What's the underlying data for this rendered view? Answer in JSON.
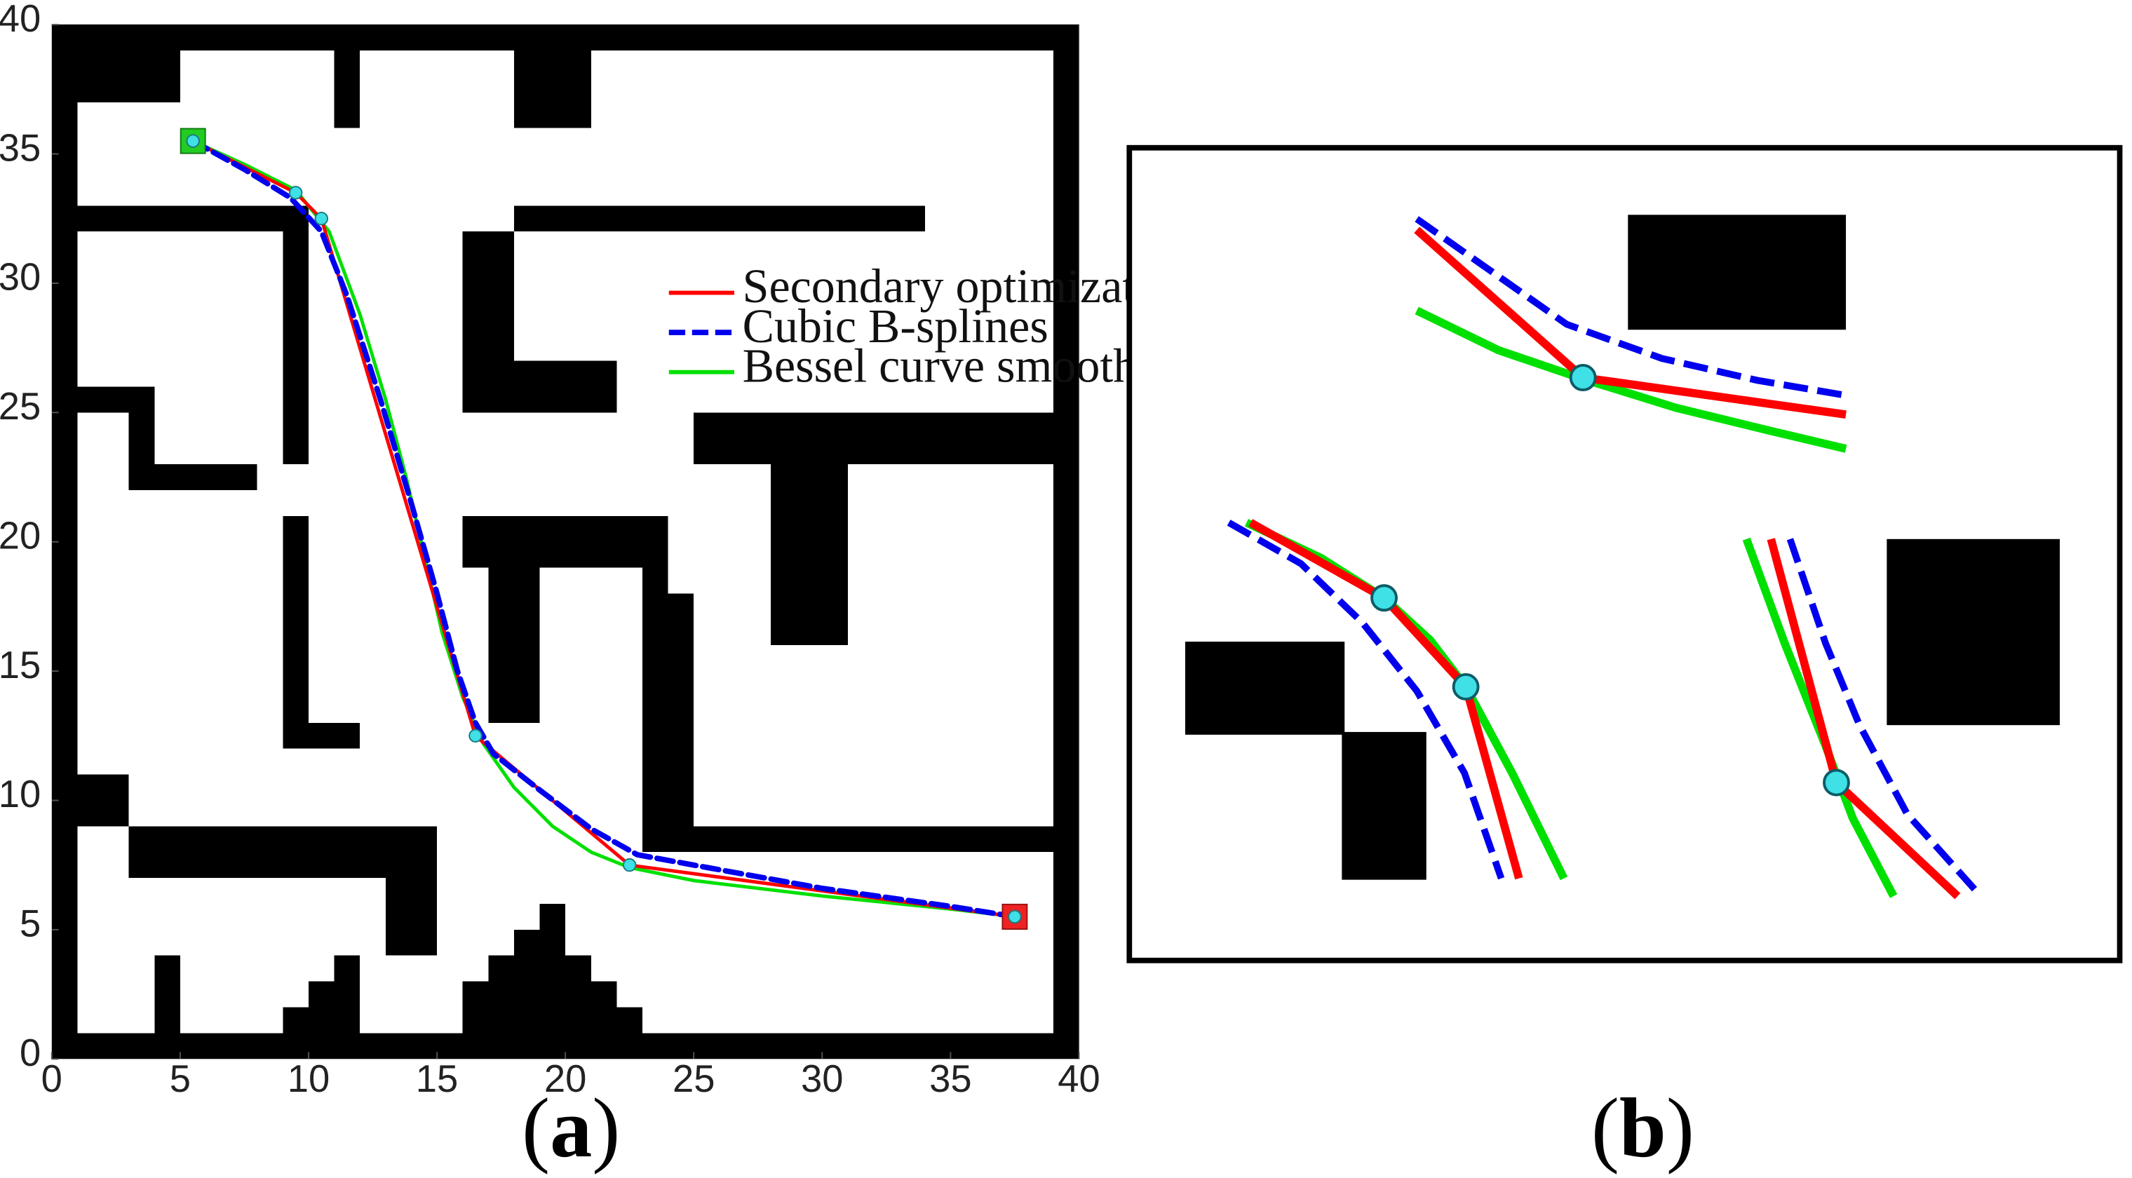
{
  "chart_data": [
    {
      "type": "line",
      "panel": "a",
      "xlim": [
        0,
        40
      ],
      "ylim": [
        0,
        40
      ],
      "xticks": [
        0,
        5,
        10,
        15,
        20,
        25,
        30,
        35,
        40
      ],
      "yticks": [
        0,
        5,
        10,
        15,
        20,
        25,
        30,
        35,
        40
      ],
      "grid": false,
      "legend_position": "upper-right",
      "start": [
        5.5,
        35.5
      ],
      "goal": [
        37.5,
        5.5
      ],
      "waypoints": [
        [
          5.5,
          35.5
        ],
        [
          9.5,
          33.5
        ],
        [
          10.5,
          32.5
        ],
        [
          16.5,
          12.5
        ],
        [
          22.5,
          7.5
        ],
        [
          37.5,
          5.5
        ]
      ],
      "obstacles": [
        [
          0,
          39,
          1,
          1
        ],
        [
          39,
          39,
          1,
          1
        ],
        [
          0,
          0,
          1,
          1
        ],
        [
          39,
          0,
          1,
          1
        ],
        [
          1,
          39,
          38,
          1
        ],
        [
          1,
          0,
          38,
          1
        ],
        [
          0,
          1,
          1,
          38
        ],
        [
          39,
          1,
          1,
          38
        ],
        [
          1,
          37,
          4,
          2
        ],
        [
          11,
          36,
          1,
          3
        ],
        [
          18,
          36,
          3,
          3
        ],
        [
          1,
          32,
          9,
          1
        ],
        [
          9,
          23,
          1,
          9
        ],
        [
          9,
          12,
          1,
          9
        ],
        [
          9,
          12,
          3,
          1
        ],
        [
          1,
          25,
          3,
          1
        ],
        [
          3,
          22,
          1,
          3
        ],
        [
          3,
          22,
          5,
          1
        ],
        [
          18,
          32,
          16,
          1
        ],
        [
          27,
          32,
          7,
          1
        ],
        [
          16,
          25,
          2,
          7
        ],
        [
          16,
          25,
          6,
          2
        ],
        [
          25,
          23,
          15,
          2
        ],
        [
          28,
          16,
          3,
          7
        ],
        [
          16,
          19,
          8,
          2
        ],
        [
          17,
          13,
          2,
          6
        ],
        [
          23,
          8,
          1,
          11
        ],
        [
          23,
          8,
          2,
          10
        ],
        [
          23,
          8,
          16,
          1
        ],
        [
          31,
          8,
          8,
          1
        ],
        [
          1,
          9,
          2,
          2
        ],
        [
          3,
          7,
          12,
          2
        ],
        [
          13,
          4,
          2,
          3
        ],
        [
          4,
          1,
          1,
          3
        ],
        [
          9,
          1,
          1,
          1
        ],
        [
          10,
          1,
          1,
          2
        ],
        [
          11,
          1,
          1,
          3
        ],
        [
          16,
          1,
          7,
          1
        ],
        [
          16,
          1,
          6,
          2
        ],
        [
          17,
          1,
          4,
          3
        ],
        [
          18,
          1,
          2,
          4
        ],
        [
          19,
          1,
          1,
          5
        ]
      ],
      "series": [
        {
          "name": "Secondary optimization",
          "color": "#ff0000",
          "dash": "solid",
          "x": [
            5.5,
            9.5,
            10.5,
            16.5,
            22.5,
            37.5
          ],
          "y": [
            35.5,
            33.5,
            32.5,
            12.5,
            7.5,
            5.5
          ]
        },
        {
          "name": "Cubic B-splines",
          "color": "#0000ee",
          "dash": "dashed",
          "x": [
            5.5,
            7.5,
            9.3,
            10.5,
            11.5,
            12.8,
            14.0,
            15.0,
            15.8,
            16.5,
            17.2,
            19.0,
            21.0,
            22.8,
            25.0,
            30.0,
            35.0,
            37.5
          ],
          "y": [
            35.5,
            34.4,
            33.3,
            32.0,
            29.5,
            25.5,
            21.5,
            18.0,
            15.0,
            13.0,
            11.8,
            10.4,
            8.9,
            7.9,
            7.5,
            6.6,
            5.9,
            5.5
          ]
        },
        {
          "name": "Bessel curve smoothing",
          "color": "#00e000",
          "dash": "solid",
          "x": [
            5.5,
            7.5,
            9.5,
            10.8,
            12.0,
            13.0,
            13.8,
            14.5,
            15.2,
            16.0,
            16.8,
            18.0,
            19.5,
            21.0,
            22.5,
            25.0,
            30.0,
            35.0,
            37.5
          ],
          "y": [
            35.5,
            34.6,
            33.6,
            32.0,
            28.8,
            25.5,
            22.5,
            19.5,
            16.5,
            14.0,
            12.2,
            10.5,
            9.0,
            8.0,
            7.4,
            6.9,
            6.3,
            5.8,
            5.5
          ]
        }
      ]
    },
    {
      "type": "line",
      "panel": "b",
      "description_free": true,
      "insets": [
        {
          "obstacles": [
            [
              1195,
              157,
              160,
              84
            ]
          ],
          "nodes": [
            [
              1162,
              276
            ]
          ],
          "red": [
            [
              1040,
              168
            ],
            [
              1162,
              276
            ],
            [
              1355,
              303
            ]
          ],
          "blue": [
            [
              1040,
              160
            ],
            [
              1090,
              195
            ],
            [
              1150,
              237
            ],
            [
              1220,
              262
            ],
            [
              1290,
              278
            ],
            [
              1355,
              289
            ]
          ],
          "green": [
            [
              1040,
              227
            ],
            [
              1100,
              256
            ],
            [
              1162,
              277
            ],
            [
              1230,
              298
            ],
            [
              1300,
              315
            ],
            [
              1355,
              328
            ]
          ]
        },
        {
          "obstacles": [
            [
              870,
              469,
              117,
              68
            ],
            [
              985,
              535,
              62,
              108
            ]
          ],
          "nodes": [
            [
              1016,
              437
            ],
            [
              1076,
              502
            ]
          ],
          "red": [
            [
              918,
              382
            ],
            [
              1016,
              437
            ],
            [
              1076,
              502
            ],
            [
              1115,
              642
            ]
          ],
          "blue": [
            [
              902,
              382
            ],
            [
              955,
              412
            ],
            [
              1000,
              455
            ],
            [
              1040,
              505
            ],
            [
              1075,
              565
            ],
            [
              1102,
              642
            ]
          ],
          "green": [
            [
              915,
              382
            ],
            [
              970,
              408
            ],
            [
              1016,
              437
            ],
            [
              1050,
              468
            ],
            [
              1076,
              502
            ],
            [
              1110,
              565
            ],
            [
              1148,
              642
            ]
          ]
        },
        {
          "obstacles": [
            [
              1385,
              394,
              127,
              136
            ]
          ],
          "nodes": [
            [
              1348,
              572
            ]
          ],
          "red": [
            [
              1300,
              394
            ],
            [
              1348,
              572
            ],
            [
              1437,
              655
            ]
          ],
          "blue": [
            [
              1314,
              394
            ],
            [
              1340,
              470
            ],
            [
              1365,
              530
            ],
            [
              1400,
              595
            ],
            [
              1454,
              655
            ]
          ],
          "green": [
            [
              1282,
              394
            ],
            [
              1310,
              470
            ],
            [
              1340,
              545
            ],
            [
              1360,
              598
            ],
            [
              1390,
              655
            ]
          ]
        }
      ]
    }
  ],
  "panel_labels": {
    "a": "a",
    "b": "b"
  },
  "colors": {
    "red": "#ff0000",
    "blue": "#0000ee",
    "green": "#00e000",
    "node": "#3fe0e6",
    "start": "#22cc22",
    "goal": "#ee2222"
  }
}
